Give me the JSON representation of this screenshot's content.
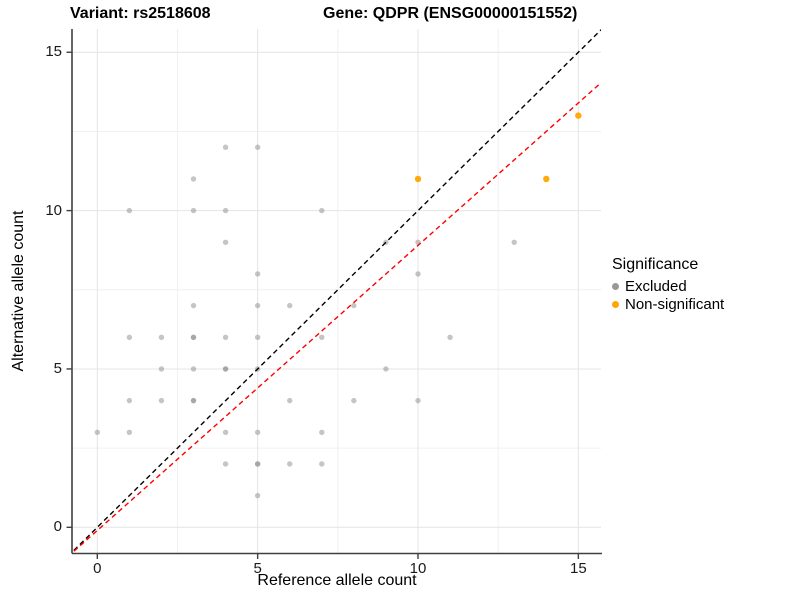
{
  "title": {
    "variant": "Variant: rs2518608",
    "gene": "Gene: QDPR (ENSG00000151552)"
  },
  "axes": {
    "x": {
      "label": "Reference allele count",
      "ticks": [
        0,
        5,
        10,
        15
      ],
      "minor_gridlines": [
        2.5,
        7.5,
        12.5
      ],
      "range": [
        -0.73,
        15.71
      ]
    },
    "y": {
      "label": "Alternative allele count",
      "ticks": [
        0,
        5,
        10,
        15
      ],
      "minor_gridlines": [
        2.5,
        7.5,
        12.5
      ],
      "range": [
        -0.81,
        15.73
      ]
    }
  },
  "legend": {
    "title": "Significance",
    "items": [
      {
        "label": "Excluded",
        "color": "#999999"
      },
      {
        "label": "Non-significant",
        "color": "#FFA500"
      }
    ]
  },
  "colors": {
    "excluded_point": "#8c8c8c",
    "non_significant_point": "#FFA500",
    "identity_line": "#000000",
    "fit_line": "#FF0000",
    "grid_major": "#e4e4e4",
    "grid_minor": "#f0f0f0",
    "axis_line": "#404040"
  },
  "chart_data": {
    "type": "scatter",
    "title": "Variant: rs2518608 — Gene: QDPR (ENSG00000151552)",
    "xlabel": "Reference allele count",
    "ylabel": "Alternative allele count",
    "xlim": [
      -0.75,
      15.75
    ],
    "ylim": [
      -0.8,
      15.75
    ],
    "grid": true,
    "legend_position": "right",
    "series": [
      {
        "name": "Excluded",
        "color": "#8c8c8c",
        "opacity": 0.5,
        "points": [
          [
            0,
            3
          ],
          [
            1,
            3
          ],
          [
            1,
            4
          ],
          [
            1,
            6
          ],
          [
            1,
            10
          ],
          [
            2,
            4
          ],
          [
            2,
            5
          ],
          [
            2,
            6
          ],
          [
            3,
            4
          ],
          [
            3,
            5
          ],
          [
            3,
            6
          ],
          [
            3,
            7
          ],
          [
            3,
            10
          ],
          [
            3,
            11
          ],
          [
            4,
            2
          ],
          [
            4,
            3
          ],
          [
            4,
            5
          ],
          [
            4,
            6
          ],
          [
            4,
            9
          ],
          [
            4,
            10
          ],
          [
            4,
            12
          ],
          [
            5,
            1
          ],
          [
            5,
            2
          ],
          [
            5,
            3
          ],
          [
            5,
            5
          ],
          [
            5,
            6
          ],
          [
            5,
            7
          ],
          [
            5,
            8
          ],
          [
            5,
            12
          ],
          [
            6,
            2
          ],
          [
            6,
            4
          ],
          [
            6,
            7
          ],
          [
            7,
            2
          ],
          [
            7,
            3
          ],
          [
            7,
            6
          ],
          [
            7,
            10
          ],
          [
            8,
            4
          ],
          [
            8,
            7
          ],
          [
            9,
            5
          ],
          [
            9,
            9
          ],
          [
            10,
            4
          ],
          [
            10,
            8
          ],
          [
            10,
            9
          ],
          [
            11,
            6
          ],
          [
            13,
            9
          ]
        ],
        "overplotted_darker": [
          [
            3,
            4
          ],
          [
            3,
            6
          ],
          [
            4,
            5
          ],
          [
            5,
            2
          ]
        ]
      },
      {
        "name": "Non-significant",
        "color": "#FFA500",
        "opacity": 0.95,
        "points": [
          [
            10,
            11
          ],
          [
            14,
            11
          ],
          [
            15,
            13
          ]
        ]
      }
    ],
    "lines": [
      {
        "name": "identity",
        "slope": 1.0,
        "intercept": 0.0,
        "color": "#000000",
        "style": "dashed"
      },
      {
        "name": "fit",
        "slope": 0.9,
        "intercept": -0.1,
        "color": "#FF0000",
        "style": "dashed"
      }
    ]
  }
}
